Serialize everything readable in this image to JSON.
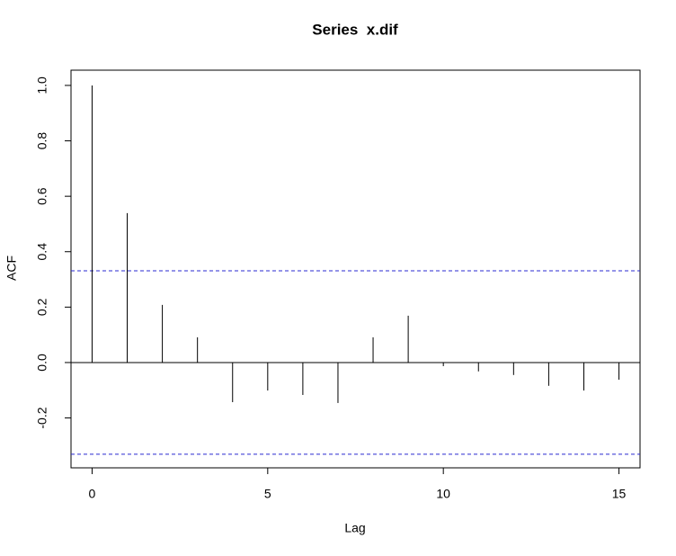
{
  "chart_data": {
    "type": "stem",
    "title": "Series  x.dif",
    "x_label": "Lag",
    "y_label": "ACF",
    "x": [
      0,
      1,
      2,
      3,
      4,
      5,
      6,
      7,
      8,
      9,
      10,
      11,
      12,
      13,
      14,
      15
    ],
    "values": [
      1.0,
      0.539,
      0.208,
      0.091,
      -0.143,
      -0.101,
      -0.117,
      -0.146,
      0.091,
      0.169,
      -0.013,
      -0.032,
      -0.045,
      -0.084,
      -0.101,
      -0.062
    ],
    "color": "#000000",
    "hlines": [
      0.331,
      -0.331
    ],
    "hline_color": "#2a2ad0",
    "xlim": [
      -0.6,
      15.6
    ],
    "ylim": [
      -0.38,
      1.055
    ],
    "xticks": [
      0,
      5,
      10,
      15
    ],
    "yticks": [
      -0.2,
      {
        "value": 0,
        "label": "0.0"
      },
      0.2,
      0.4,
      0.6,
      0.8,
      {
        "value": 1,
        "label": "1.0"
      }
    ]
  }
}
